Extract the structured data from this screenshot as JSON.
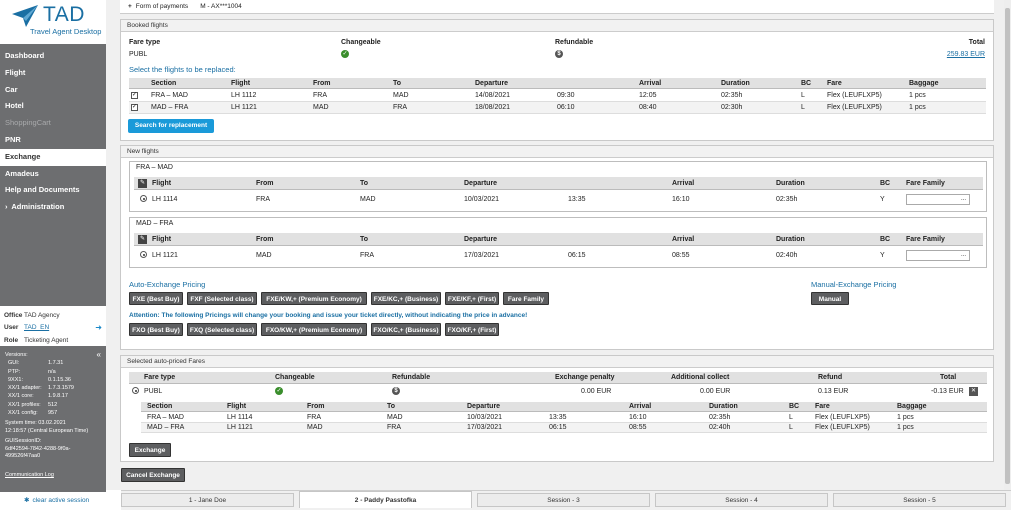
{
  "app": {
    "brand": "TAD",
    "subtitle": "Travel Agent Desktop"
  },
  "nav": {
    "items": [
      "Dashboard",
      "Flight",
      "Car",
      "Hotel",
      "ShoppingCart",
      "PNR",
      "Exchange",
      "Amadeus",
      "Help and Documents",
      "Administration"
    ],
    "administration_prefix": "›"
  },
  "office": {
    "office_label": "Office",
    "office_value": "TAD Agency",
    "user_label": "User",
    "user_value": "TAD_EN",
    "role_label": "Role",
    "role_value": "Ticketing Agent"
  },
  "versions": {
    "title": "Versions:",
    "collapse": "«",
    "rows": [
      [
        "GUI:",
        "1.7.31"
      ],
      [
        "PTP:",
        "n/a"
      ],
      [
        "9XX1:",
        "0.1.15.36"
      ],
      [
        "XX/1 adapter:",
        "1.7.3.1579"
      ],
      [
        "XX/1 core:",
        "1.9.8.17"
      ],
      [
        "XX/1 profiles:",
        "512"
      ],
      [
        "XX/1 config:",
        "957"
      ]
    ],
    "system_time_label": "System time: 03.02.2021",
    "system_time_value": "12:18:57 (Central European Time)",
    "guisession_label": "GUISessionID:",
    "guisession_value": "6df42594-7842-4288-9f0a-499526f47aa0",
    "comm_log": "Communication Log"
  },
  "clear_session": "clear active session",
  "form_of_payments": {
    "label": "Form of payments",
    "value": "M - AX***1004",
    "toggle": "+"
  },
  "booked": {
    "title": "Booked flights",
    "fare_type_label": "Fare type",
    "changeable_label": "Changeable",
    "refundable_label": "Refundable",
    "total_label": "Total",
    "fare_type": "PUBL",
    "total": "259.83 EUR",
    "select_title": "Select the flights to be replaced:",
    "headers": [
      "Section",
      "Flight",
      "From",
      "To",
      "Departure",
      "",
      "Arrival",
      "Duration",
      "BC",
      "Fare",
      "Baggage"
    ],
    "rows": [
      [
        "FRA – MAD",
        "LH 1112",
        "FRA",
        "MAD",
        "14/08/2021",
        "09:30",
        "12:05",
        "02:35h",
        "L",
        "Flex (LEUFLXP5)",
        "1 pcs"
      ],
      [
        "MAD – FRA",
        "LH 1121",
        "MAD",
        "FRA",
        "18/08/2021",
        "06:10",
        "08:40",
        "02:30h",
        "L",
        "Flex (LEUFLXP5)",
        "1 pcs"
      ]
    ],
    "search_button": "Search for replacement"
  },
  "new_flights": {
    "title": "New flights",
    "headers": [
      "Flight",
      "From",
      "To",
      "Departure",
      "",
      "Arrival",
      "Duration",
      "BC",
      "Fare Family"
    ],
    "segments": [
      {
        "title": "FRA – MAD",
        "row": [
          "LH 1114",
          "FRA",
          "MAD",
          "10/03/2021",
          "13:35",
          "16:10",
          "02:35h",
          "Y"
        ]
      },
      {
        "title": "MAD – FRA",
        "row": [
          "LH 1121",
          "MAD",
          "FRA",
          "17/03/2021",
          "06:15",
          "08:55",
          "02:40h",
          "Y"
        ]
      }
    ],
    "select_caret": "..."
  },
  "pricing": {
    "auto_title": "Auto-Exchange Pricing",
    "manual_title": "Manual-Exchange Pricing",
    "fxe_buttons": [
      "FXE (Best Buy)",
      "FXF (Selected class)",
      "FXE/KW,+ (Premium Economy)",
      "FXE/KC,+ (Business)",
      "FXE/KF,+ (First)",
      "Fare Family"
    ],
    "manual_button": "Manual",
    "warning": "Attention: The following Pricings will change your booking and issue your ticket directly, without indicating the price in advance!",
    "fxo_buttons": [
      "FXO (Best Buy)",
      "FXQ (Selected class)",
      "FXO/KW,+ (Premium Economy)",
      "FXO/KC,+ (Business)",
      "FXO/KF,+ (First)"
    ]
  },
  "auto_priced": {
    "title": "Selected auto-priced Fares",
    "headers": [
      "Fare type",
      "Changeable",
      "Refundable",
      "Exchange penalty",
      "Additional collect",
      "Refund",
      "Total"
    ],
    "fare_type": "PUBL",
    "exchange_penalty": "0.00 EUR",
    "additional_collect": "0.00 EUR",
    "refund": "0.13 EUR",
    "total": "-0.13 EUR",
    "seg_headers": [
      "Section",
      "Flight",
      "From",
      "To",
      "Departure",
      "",
      "Arrival",
      "Duration",
      "BC",
      "Fare",
      "Baggage"
    ],
    "seg_rows": [
      [
        "FRA – MAD",
        "LH 1114",
        "FRA",
        "MAD",
        "10/03/2021",
        "13:35",
        "16:10",
        "02:35h",
        "L",
        "Flex (LEUFLXP5)",
        "1 pcs"
      ],
      [
        "MAD – FRA",
        "LH 1121",
        "MAD",
        "FRA",
        "17/03/2021",
        "06:15",
        "08:55",
        "02:40h",
        "L",
        "Flex (LEUFLXP5)",
        "1 pcs"
      ]
    ],
    "exchange_button": "Exchange"
  },
  "cancel_button": "Cancel Exchange",
  "tabs": [
    "1 - Jane Doe",
    "2 - Paddy Passtofka",
    "Session - 3",
    "Session - 4",
    "Session - 5"
  ]
}
